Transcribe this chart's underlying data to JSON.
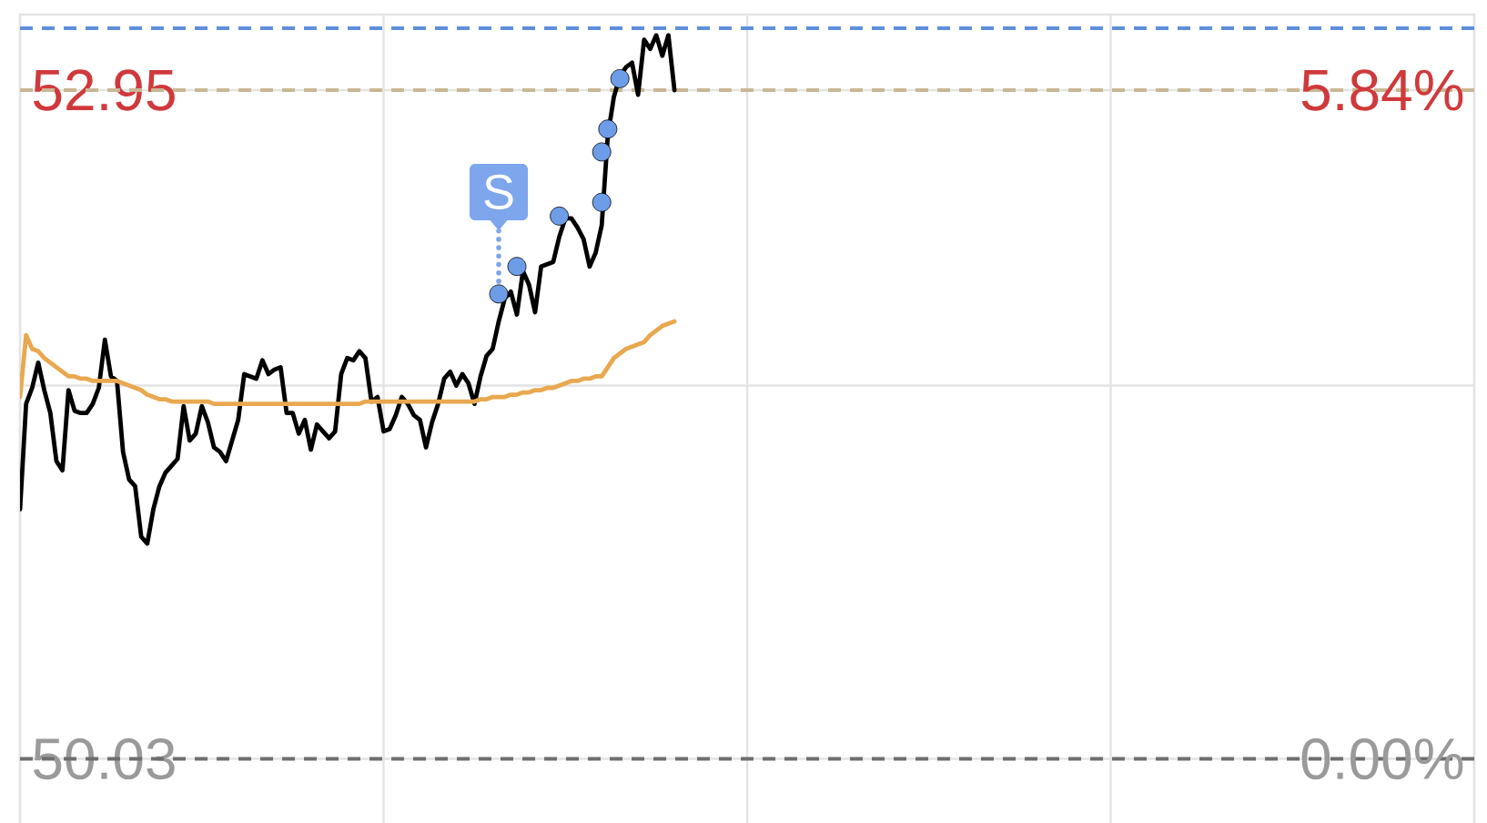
{
  "chart_data": {
    "type": "line",
    "categories": [
      null,
      null,
      null,
      null,
      null,
      null,
      null,
      null,
      null,
      null,
      null,
      null,
      null,
      null,
      null,
      null,
      null,
      null,
      null,
      null,
      null,
      null,
      null,
      null,
      null,
      null,
      null,
      null,
      null,
      null,
      null,
      null,
      null,
      null,
      null,
      null,
      null,
      null,
      null,
      null,
      null,
      null,
      null,
      null,
      null,
      null,
      null,
      null,
      null,
      null,
      null,
      null,
      null,
      null,
      null,
      null,
      null,
      null,
      null,
      null,
      null,
      null,
      null,
      null,
      null,
      null,
      null,
      null,
      null,
      null,
      null,
      null,
      null,
      null,
      null,
      null,
      null,
      null,
      null,
      null,
      null,
      null,
      null,
      null,
      null,
      null,
      null,
      null,
      null,
      null,
      null,
      null,
      null,
      null,
      null,
      null,
      null,
      null,
      null,
      null,
      null,
      null,
      null,
      null,
      null,
      null,
      null,
      null,
      null,
      null,
      null,
      null,
      null,
      null,
      null,
      null,
      null,
      null,
      null,
      null,
      null,
      null,
      null,
      null,
      null,
      null,
      null,
      null,
      null,
      null,
      null,
      null,
      null,
      null,
      null,
      null,
      null,
      null,
      null,
      null,
      null,
      null,
      null,
      null,
      null,
      null,
      null,
      null,
      null,
      null,
      null,
      null,
      null,
      null,
      null,
      null,
      null,
      null,
      null,
      null,
      null,
      null,
      null,
      null,
      null,
      null,
      null,
      null,
      null,
      null,
      null,
      null,
      null,
      null,
      null,
      null,
      null,
      null,
      null,
      null,
      null,
      null,
      null,
      null,
      null,
      null,
      null,
      null,
      null,
      null,
      null,
      null,
      null,
      null,
      null,
      null,
      null,
      null,
      null,
      null,
      null,
      null,
      null,
      null,
      null,
      null,
      null,
      null,
      null,
      null,
      null,
      null,
      null,
      null,
      null,
      null,
      null,
      null,
      null,
      null,
      null,
      null,
      null,
      null,
      null,
      null,
      null,
      null,
      null,
      null,
      null,
      null,
      null,
      null,
      null,
      null,
      null,
      null,
      null,
      null,
      null
    ],
    "ylim": [
      49.75,
      53.28
    ],
    "yticks": [
      52.95,
      {
        "value": 51.66,
        "label": null
      },
      50.03
    ],
    "y2lim": [
      -0.56,
      6.5
    ],
    "y2ticks": [
      {
        "value": 5.84,
        "label": "5.84%"
      },
      {
        "value": 0,
        "label": "0.00%"
      }
    ],
    "grid": true,
    "series": [
      {
        "color": "#000000",
        "values": [
          51.12,
          51.58,
          51.65,
          51.76,
          51.64,
          51.54,
          51.33,
          51.29,
          51.64,
          51.55,
          51.54,
          51.54,
          51.58,
          51.65,
          51.86,
          51.7,
          51.68,
          51.37,
          51.25,
          51.22,
          51.0,
          50.97,
          51.12,
          51.22,
          51.28,
          51.31,
          51.34,
          51.57,
          51.42,
          51.45,
          51.57,
          51.5,
          51.39,
          51.37,
          51.33,
          51.42,
          51.51,
          51.71,
          51.7,
          51.69,
          51.77,
          51.71,
          51.73,
          51.74,
          51.54,
          51.54,
          51.45,
          51.51,
          51.38,
          51.49,
          51.46,
          51.43,
          51.46,
          51.71,
          51.78,
          51.77,
          51.81,
          51.78,
          51.59,
          51.61,
          51.46,
          51.47,
          51.53,
          51.61,
          51.58,
          51.53,
          51.51,
          51.39,
          51.5,
          51.58,
          51.69,
          51.72,
          51.66,
          51.71,
          51.67,
          51.58,
          51.7,
          51.79,
          51.82,
          51.94,
          52.04,
          52.07,
          51.97,
          52.16,
          52.1,
          51.98,
          52.18,
          52.19,
          52.2,
          52.31,
          52.39,
          52.39,
          52.35,
          52.3,
          52.18,
          52.24,
          52.36,
          52.75,
          52.92,
          53.01,
          53.05,
          53.07,
          52.93,
          53.17,
          53.13,
          53.19,
          53.1,
          53.19,
          52.95,
          null,
          null,
          null,
          null,
          null,
          null,
          null,
          null,
          null,
          null,
          null,
          null,
          null,
          null,
          null,
          null,
          null,
          null,
          null,
          null,
          null,
          null,
          null,
          null,
          null,
          null,
          null,
          null,
          null,
          null,
          null,
          null,
          null,
          null,
          null,
          null,
          null,
          null,
          null,
          null,
          null,
          null,
          null,
          null,
          null,
          null,
          null,
          null,
          null,
          null,
          null,
          null,
          null,
          null,
          null,
          null,
          null,
          null,
          null,
          null,
          null,
          null,
          null,
          null,
          null,
          null,
          null,
          null,
          null,
          null,
          null,
          null,
          null,
          null,
          null,
          null,
          null,
          null,
          null,
          null,
          null,
          null,
          null,
          null,
          null,
          null,
          null,
          null,
          null,
          null,
          null,
          null,
          null,
          null,
          null,
          null,
          null,
          null,
          null,
          null,
          null,
          null,
          null,
          null,
          null,
          null,
          null,
          null,
          null,
          null,
          null,
          null,
          null,
          null,
          null,
          null,
          null,
          null,
          null,
          null,
          null,
          null,
          null,
          null,
          null,
          null,
          null,
          null,
          null,
          null,
          null,
          null
        ]
      },
      {
        "color": "#e9a84f",
        "values": [
          51.61,
          51.88,
          51.82,
          51.81,
          51.78,
          51.76,
          51.74,
          51.72,
          51.7,
          51.7,
          51.69,
          51.69,
          51.68,
          51.68,
          51.68,
          51.68,
          51.68,
          51.67,
          51.66,
          51.65,
          51.64,
          51.62,
          51.61,
          51.6,
          51.6,
          51.59,
          51.59,
          51.59,
          51.59,
          51.59,
          51.59,
          51.59,
          51.58,
          51.58,
          51.58,
          51.58,
          51.58,
          51.58,
          51.58,
          51.58,
          51.58,
          51.58,
          51.58,
          51.58,
          51.58,
          51.58,
          51.58,
          51.58,
          51.58,
          51.58,
          51.58,
          51.58,
          51.58,
          51.58,
          51.58,
          51.58,
          51.58,
          51.59,
          51.59,
          51.59,
          51.59,
          51.59,
          51.59,
          51.59,
          51.59,
          51.59,
          51.59,
          51.59,
          51.59,
          51.59,
          51.59,
          51.59,
          51.59,
          51.59,
          51.59,
          51.59,
          51.6,
          51.6,
          51.61,
          51.61,
          51.61,
          51.62,
          51.62,
          51.63,
          51.63,
          51.64,
          51.64,
          51.65,
          51.65,
          51.66,
          51.67,
          51.68,
          51.68,
          51.69,
          51.69,
          51.7,
          51.7,
          51.74,
          51.78,
          51.8,
          51.82,
          51.83,
          51.84,
          51.85,
          51.88,
          51.9,
          51.92,
          51.93,
          51.94,
          null,
          null,
          null,
          null,
          null,
          null,
          null,
          null,
          null,
          null,
          null,
          null,
          null,
          null,
          null,
          null,
          null,
          null,
          null,
          null,
          null,
          null,
          null,
          null,
          null,
          null,
          null,
          null,
          null,
          null,
          null,
          null,
          null,
          null,
          null,
          null,
          null,
          null,
          null,
          null,
          null,
          null,
          null,
          null,
          null,
          null,
          null,
          null,
          null,
          null,
          null,
          null,
          null,
          null,
          null,
          null,
          null,
          null,
          null,
          null,
          null,
          null,
          null,
          null,
          null,
          null,
          null,
          null,
          null,
          null,
          null,
          null,
          null,
          null,
          null,
          null,
          null,
          null,
          null,
          null,
          null,
          null,
          null,
          null,
          null,
          null,
          null,
          null,
          null,
          null,
          null,
          null,
          null,
          null,
          null,
          null,
          null,
          null,
          null,
          null,
          null,
          null,
          null,
          null,
          null,
          null,
          null,
          null,
          null,
          null,
          null,
          null,
          null,
          null,
          null,
          null,
          null,
          null,
          null,
          null,
          null,
          null,
          null,
          null,
          null,
          null,
          null,
          null,
          null,
          null,
          null,
          null
        ]
      },
      {
        "type": "scatter",
        "color": "#6e9de8",
        "marker": "circle",
        "values": [
          null,
          null,
          null,
          null,
          null,
          null,
          null,
          null,
          null,
          null,
          null,
          null,
          null,
          null,
          null,
          null,
          null,
          null,
          null,
          null,
          null,
          null,
          null,
          null,
          null,
          null,
          null,
          null,
          null,
          null,
          null,
          null,
          null,
          null,
          null,
          null,
          null,
          null,
          null,
          null,
          null,
          null,
          null,
          null,
          null,
          null,
          null,
          null,
          null,
          null,
          null,
          null,
          null,
          null,
          null,
          null,
          null,
          null,
          null,
          null,
          null,
          null,
          null,
          null,
          null,
          null,
          null,
          null,
          null,
          null,
          null,
          null,
          null,
          null,
          null,
          null,
          null,
          null,
          null,
          52.06,
          null,
          null,
          52.18,
          null,
          null,
          null,
          null,
          null,
          null,
          52.4,
          null,
          null,
          null,
          null,
          null,
          null,
          52.46,
          52.78,
          null,
          53.0,
          null,
          null,
          null,
          null,
          null,
          null,
          null,
          null,
          null,
          null,
          null,
          null,
          null,
          null,
          null,
          null,
          null,
          null,
          null,
          null,
          null,
          null,
          null,
          null,
          null,
          null,
          null,
          null,
          null,
          null,
          null,
          null,
          null,
          null,
          null,
          null,
          null,
          null,
          null,
          null,
          null,
          null,
          null,
          null,
          null,
          null,
          null,
          null,
          null,
          null,
          null,
          null,
          null,
          null,
          null,
          null,
          null,
          null,
          null,
          null,
          null,
          null,
          null,
          null,
          null,
          null,
          null,
          null,
          null,
          null,
          null,
          null,
          null,
          null,
          null,
          null,
          null,
          null,
          null,
          null,
          null,
          null,
          null,
          null,
          null,
          null,
          null,
          null,
          null,
          null,
          null,
          null,
          null,
          null,
          null,
          null,
          null,
          null,
          null,
          null,
          null,
          null,
          null,
          null,
          null,
          null,
          null,
          null,
          null,
          null,
          null,
          null,
          null,
          null,
          null,
          null,
          null,
          null,
          null,
          null,
          null,
          null,
          null,
          null,
          null,
          null,
          null,
          null,
          null,
          null,
          null,
          null,
          null,
          null,
          null,
          null,
          null,
          null,
          null,
          null,
          null
        ]
      },
      {
        "type": "scatter",
        "color": "#6e9de8",
        "marker": "circle",
        "values": [
          null,
          null,
          null,
          null,
          null,
          null,
          null,
          null,
          null,
          null,
          null,
          null,
          null,
          null,
          null,
          null,
          null,
          null,
          null,
          null,
          null,
          null,
          null,
          null,
          null,
          null,
          null,
          null,
          null,
          null,
          null,
          null,
          null,
          null,
          null,
          null,
          null,
          null,
          null,
          null,
          null,
          null,
          null,
          null,
          null,
          null,
          null,
          null,
          null,
          null,
          null,
          null,
          null,
          null,
          null,
          null,
          null,
          null,
          null,
          null,
          null,
          null,
          null,
          null,
          null,
          null,
          null,
          null,
          null,
          null,
          null,
          null,
          null,
          null,
          null,
          null,
          null,
          null,
          null,
          null,
          null,
          null,
          null,
          null,
          null,
          null,
          null,
          null,
          null,
          null,
          null,
          null,
          null,
          null,
          null,
          null,
          52.68,
          null,
          null,
          null,
          null,
          null,
          null,
          null,
          null,
          null,
          null,
          null,
          null,
          null,
          null,
          null,
          null,
          null,
          null,
          null,
          null,
          null,
          null,
          null,
          null,
          null,
          null,
          null,
          null,
          null,
          null,
          null,
          null,
          null,
          null,
          null,
          null,
          null,
          null,
          null,
          null,
          null,
          null,
          null,
          null,
          null,
          null,
          null,
          null,
          null,
          null,
          null,
          null,
          null,
          null,
          null,
          null,
          null,
          null,
          null,
          null,
          null,
          null,
          null,
          null,
          null,
          null,
          null,
          null,
          null,
          null,
          null,
          null,
          null,
          null,
          null,
          null,
          null,
          null,
          null,
          null,
          null,
          null,
          null,
          null,
          null,
          null,
          null,
          null,
          null,
          null,
          null,
          null,
          null,
          null,
          null,
          null,
          null,
          null,
          null,
          null,
          null,
          null,
          null,
          null,
          null,
          null,
          null,
          null,
          null,
          null,
          null,
          null,
          null,
          null,
          null,
          null,
          null,
          null,
          null,
          null,
          null,
          null,
          null,
          null,
          null,
          null,
          null,
          null,
          null,
          null,
          null,
          null,
          null,
          null,
          null,
          null,
          null,
          null,
          null,
          null,
          null,
          null,
          null,
          null
        ]
      }
    ],
    "ref_lines": [
      {
        "axis": "y",
        "value": 53.22,
        "color": "#5f8fdc",
        "line_style": "dashed"
      },
      {
        "axis": "y",
        "value": 52.95,
        "color": "#c9b794",
        "line_style": "dashed"
      },
      {
        "axis": "y",
        "value": 50.03,
        "color": "#6e6e6e",
        "line_style": "dashed"
      }
    ],
    "annotations": [
      {
        "text": "S",
        "y": 52.06
      }
    ]
  }
}
